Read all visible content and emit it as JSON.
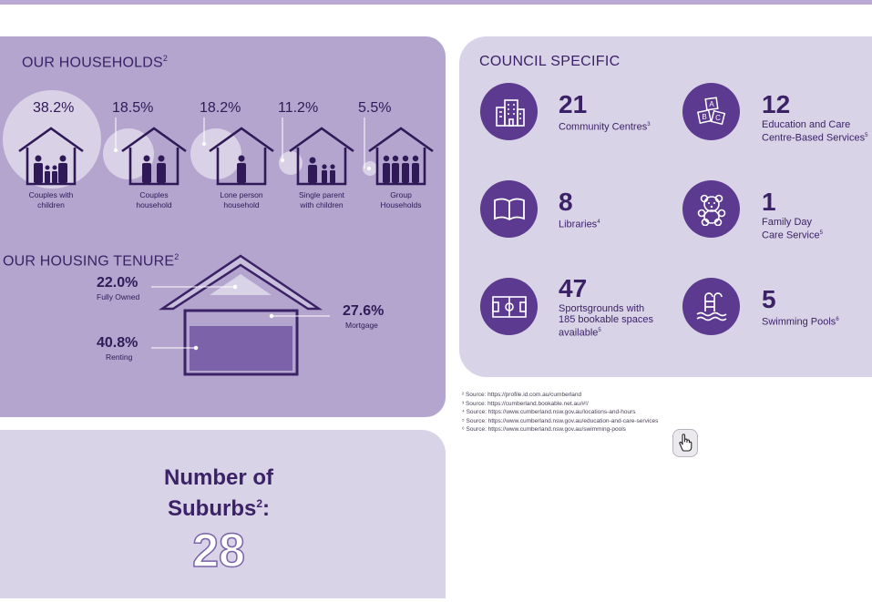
{
  "households": {
    "title": "OUR HOUSEHOLDS",
    "title_sup": "2",
    "items": [
      {
        "pct": "38.2%",
        "label1": "Couples with",
        "label2": "children"
      },
      {
        "pct": "18.5%",
        "label1": "Couples",
        "label2": "household"
      },
      {
        "pct": "18.2%",
        "label1": "Lone person",
        "label2": "household"
      },
      {
        "pct": "11.2%",
        "label1": "Single parent",
        "label2": "with children"
      },
      {
        "pct": "5.5%",
        "label1": "Group",
        "label2": "Households"
      }
    ]
  },
  "tenure": {
    "title": "OUR HOUSING TENURE",
    "title_sup": "2",
    "owned_pct": "22.0%",
    "owned_label": "Fully Owned",
    "mortgage_pct": "27.6%",
    "mortgage_label": "Mortgage",
    "renting_pct": "40.8%",
    "renting_label": "Renting"
  },
  "suburbs": {
    "title_line1": "Number of",
    "title_line2": "Suburbs",
    "title_sup": "2",
    "title_colon": ":",
    "value": "28"
  },
  "council": {
    "title": "COUNCIL SPECIFIC",
    "stats": [
      {
        "icon": "building-icon",
        "num": "21",
        "line1": "Community Centres",
        "sup": "3",
        "line2": "",
        "line3": ""
      },
      {
        "icon": "blocks-icon",
        "num": "12",
        "line1": "Education and Care",
        "line2": "Centre-Based Services",
        "sup": "5",
        "line3": ""
      },
      {
        "icon": "book-icon",
        "num": "8",
        "line1": "Libraries",
        "sup": "4",
        "line2": "",
        "line3": ""
      },
      {
        "icon": "teddy-bear-icon",
        "num": "1",
        "line1": "Family Day",
        "line2": "Care Service",
        "sup": "5",
        "line3": ""
      },
      {
        "icon": "sportsground-icon",
        "num": "47",
        "line1": "Sportsgrounds with",
        "line2": "185 bookable spaces",
        "line3": "available",
        "sup": "5"
      },
      {
        "icon": "pool-icon",
        "num": "5",
        "line1": "Swimming Pools",
        "sup": "6",
        "line2": "",
        "line3": ""
      }
    ]
  },
  "sources": [
    "² Source: https://profile.id.com.au/cumberland",
    "³ Source: https://cumberland.bookable.net.au/#!/",
    "⁴ Source: https://www.cumberland.nsw.gov.au/locations-and-hours",
    "⁵ Source: https://www.cumberland.nsw.gov.au/education-and-care-services",
    "⁶ Source: https://www.cumberland.nsw.gov.au/swimming-pools"
  ],
  "colors": {
    "households_panel": "#b3a5ce",
    "council_panel": "#d9d3e7",
    "icon_circle": "#5b3a8f",
    "text": "#3b2266"
  }
}
